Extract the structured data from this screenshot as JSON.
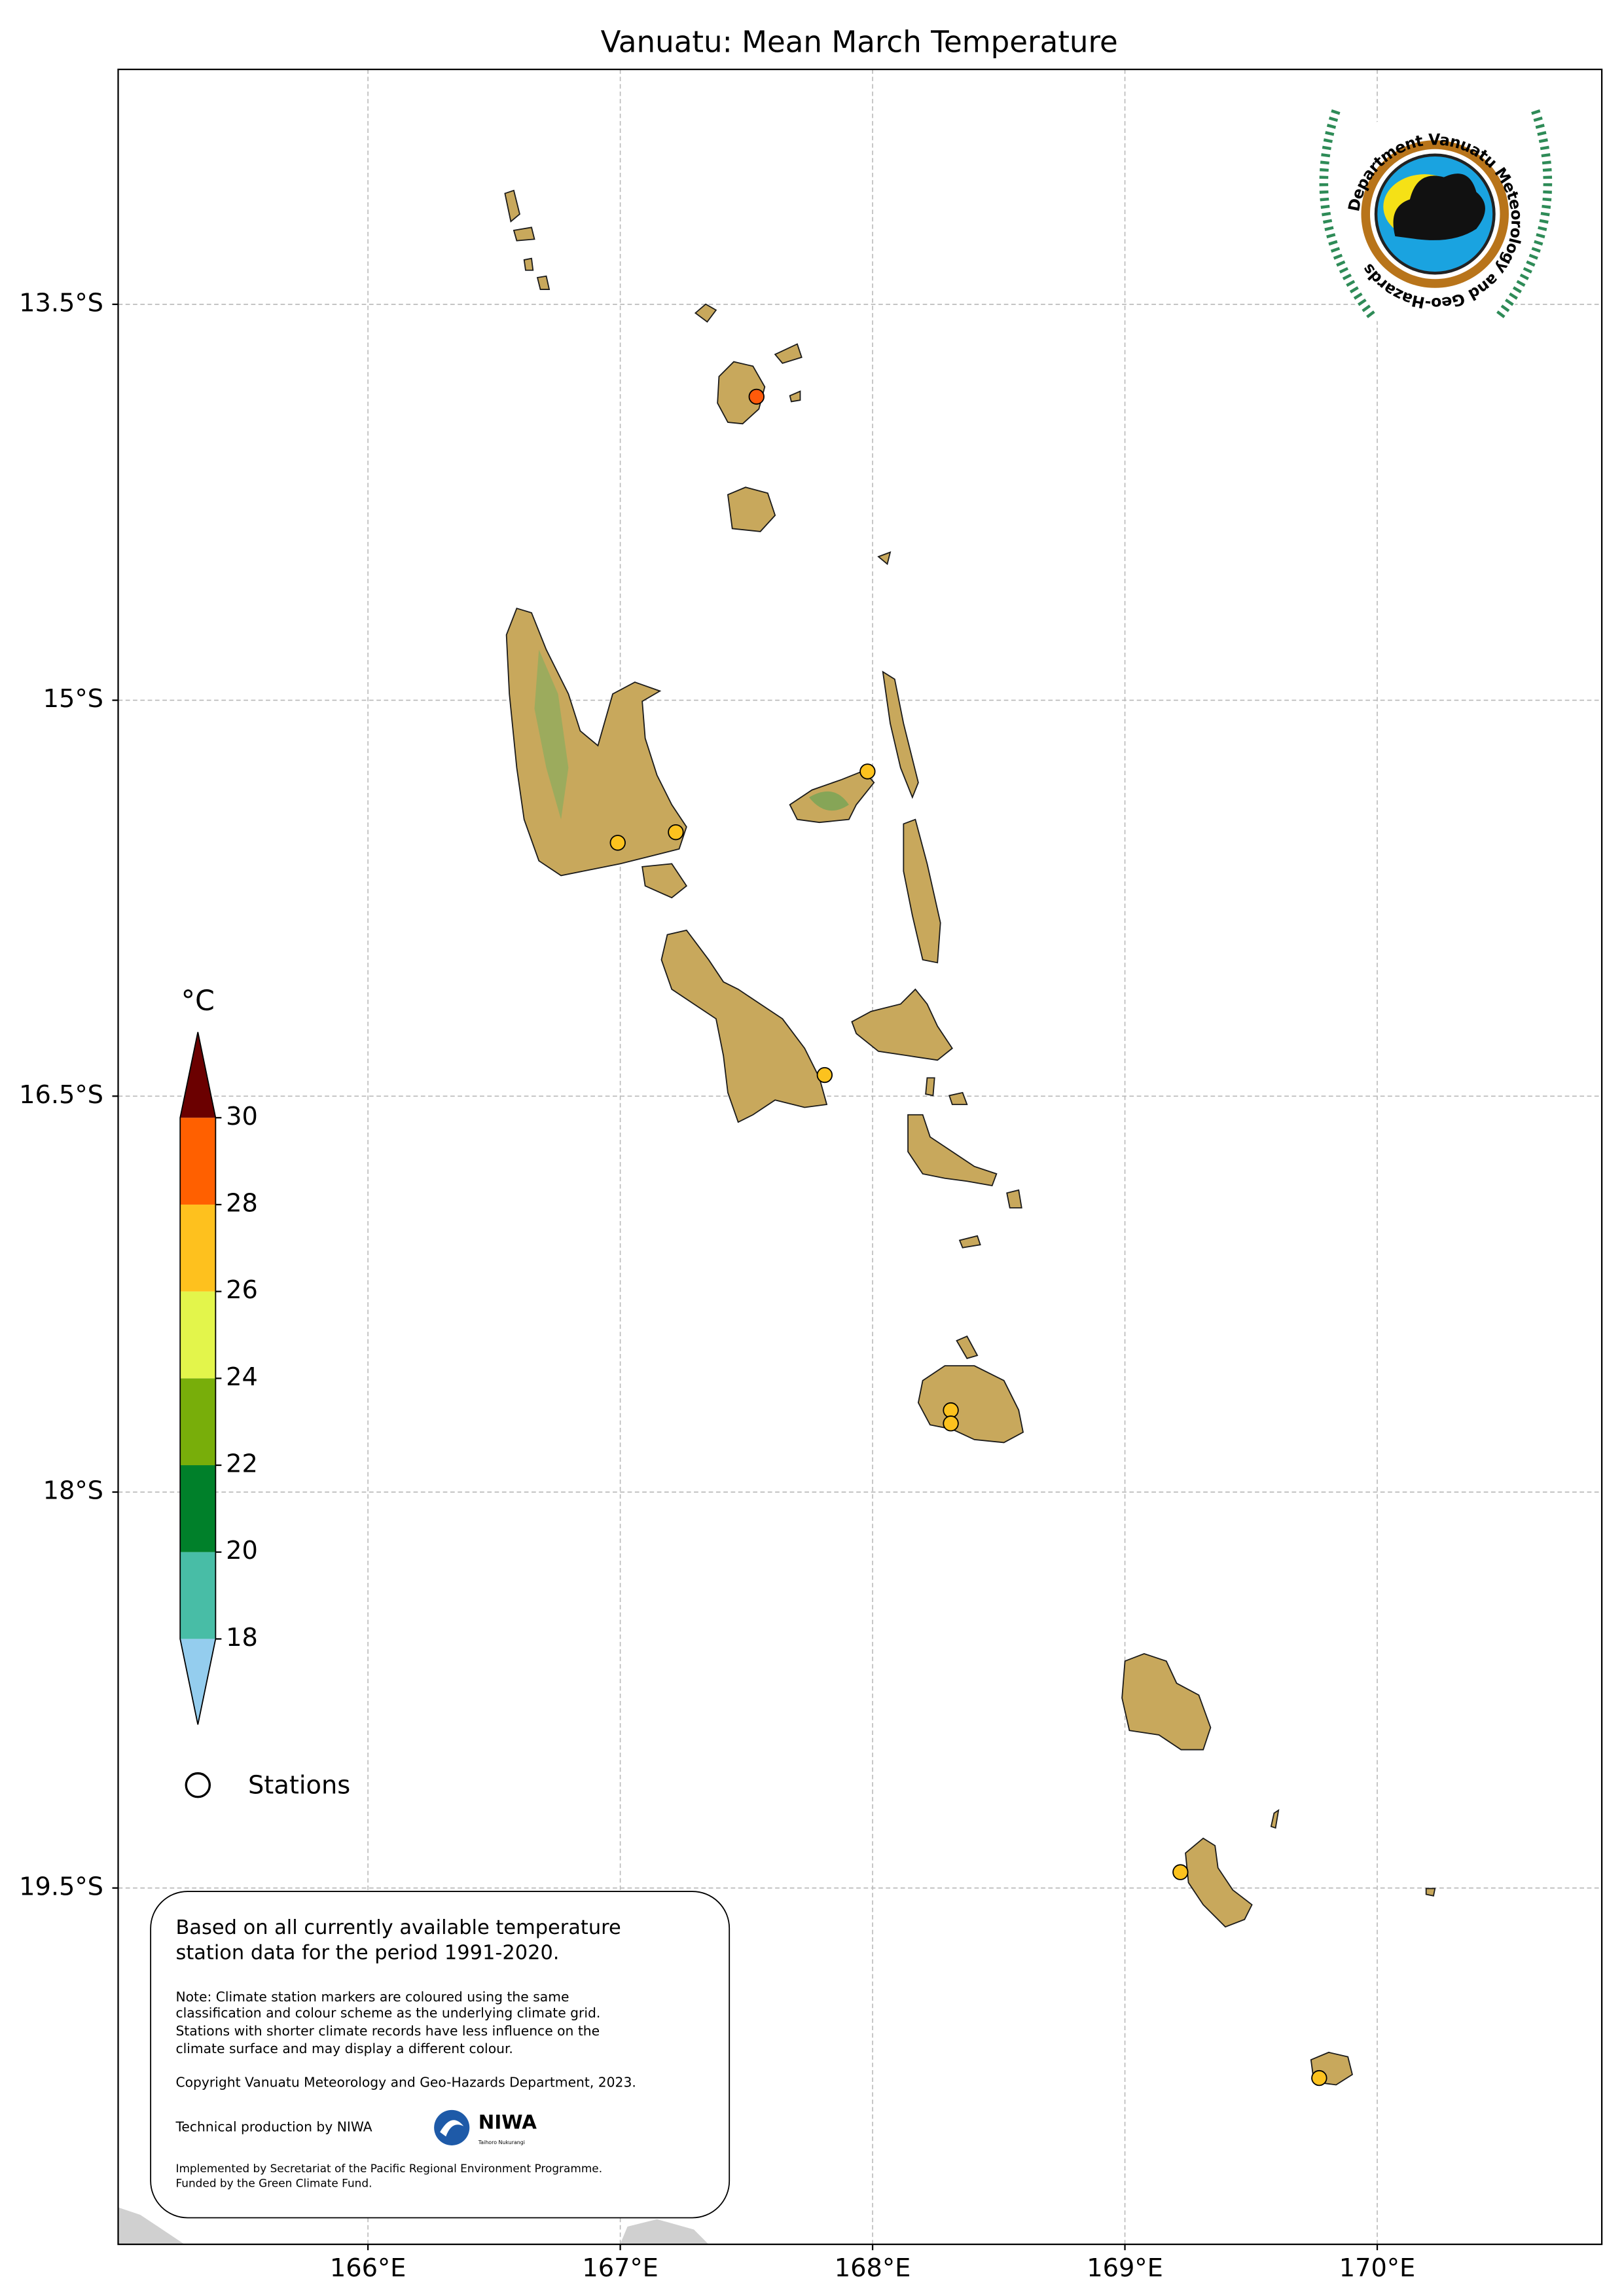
{
  "map": {
    "title": "Vanuatu: Mean March Temperature",
    "lon_range": [
      165.01,
      170.89
    ],
    "lat_range": [
      -20.85,
      -12.61
    ],
    "lon_ticks": [
      {
        "value": 166,
        "label": "166°E"
      },
      {
        "value": 167,
        "label": "167°E"
      },
      {
        "value": 168,
        "label": "168°E"
      },
      {
        "value": 169,
        "label": "169°E"
      },
      {
        "value": 170,
        "label": "170°E"
      }
    ],
    "lat_ticks": [
      {
        "value": -13.5,
        "label": "13.5°S"
      },
      {
        "value": -15,
        "label": "15°S"
      },
      {
        "value": -16.5,
        "label": "16.5°S"
      },
      {
        "value": -18,
        "label": "18°S"
      },
      {
        "value": -19.5,
        "label": "19.5°S"
      }
    ],
    "grid": true,
    "stations": [
      {
        "lon": 167.54,
        "lat": -13.85,
        "color": "#ff5a0a"
      },
      {
        "lon": 167.98,
        "lat": -15.27,
        "color": "#fcc21e"
      },
      {
        "lon": 167.22,
        "lat": -15.5,
        "color": "#fcc21e"
      },
      {
        "lon": 166.99,
        "lat": -15.54,
        "color": "#fcc21e"
      },
      {
        "lon": 167.81,
        "lat": -16.42,
        "color": "#fcc21e"
      },
      {
        "lon": 168.31,
        "lat": -17.69,
        "color": "#fcc21e"
      },
      {
        "lon": 168.31,
        "lat": -17.74,
        "color": "#fcc21e"
      },
      {
        "lon": 169.22,
        "lat": -19.44,
        "color": "#fcc21e"
      },
      {
        "lon": 169.77,
        "lat": -20.22,
        "color": "#fcc21e"
      }
    ]
  },
  "colorbar": {
    "unit": "°C",
    "ticks": [
      18,
      20,
      22,
      24,
      26,
      28,
      30
    ],
    "under_color": "#94cdee",
    "over_color": "#6b0000",
    "band_colors": [
      "#48bda6",
      "#00802a",
      "#78ae0a",
      "#e3f54b",
      "#fec11e",
      "#ff6000"
    ]
  },
  "legend": {
    "stations": "Stations"
  },
  "logo": {
    "text": "Department Vanuatu Meteorology and Geo-Hazards"
  },
  "note_box": {
    "summary": [
      "Based on all currently available temperature",
      "station data for the period 1991-2020."
    ],
    "note": [
      "Note: Climate station markers are coloured using the same",
      "classification and colour scheme as the underlying climate grid.",
      "Stations with shorter climate records have less influence on the",
      "climate surface and may display a different colour."
    ],
    "copyright": "Copyright Vanuatu Meteorology and Geo-Hazards Department, 2023.",
    "technical_production": "Technical production by NIWA",
    "implemented": [
      "Implemented by Secretariat of the Pacific Regional Environment Programme.",
      "Funded by the Green Climate Fund."
    ]
  },
  "niwa_logo": {
    "name": "NIWA",
    "tagline": "Taihoro Nukurangi"
  }
}
